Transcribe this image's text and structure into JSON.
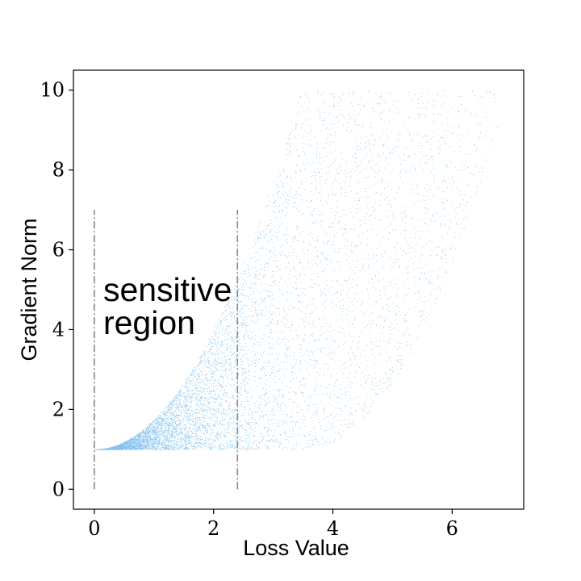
{
  "chart_data": {
    "type": "scatter",
    "title": "",
    "xlabel": "Loss Value",
    "ylabel": "Gradient Norm",
    "xlim": [
      -0.35,
      7.2
    ],
    "ylim": [
      -0.5,
      10.5
    ],
    "xticks": [
      0,
      2,
      4,
      6
    ],
    "yticks": [
      0,
      2,
      4,
      6,
      8,
      10
    ],
    "grid": false,
    "legend": "none",
    "color": "#1f8fe0",
    "point_count": 30000,
    "distribution": {
      "x_range": [
        0,
        7
      ],
      "y_floor": 1,
      "y_cap": 10,
      "upper_bound": "y = 1 + 0.75*x^2 (capped at 10)",
      "lower_bound": "y = 1 for x <= 3.5, then y = 1 + 0.75*(x-3.5)^2",
      "density": "highest near x = 0, decreasing with loss"
    },
    "vertical_lines": [
      {
        "x": 0,
        "y_range": [
          0,
          7
        ],
        "style": "dash-dot",
        "color": "#888888"
      },
      {
        "x": 2.4,
        "y_range": [
          0,
          7
        ],
        "style": "dash-dot",
        "color": "#888888"
      }
    ],
    "annotation": {
      "lines": [
        "sensitive",
        "region"
      ],
      "x": 0.15,
      "y": 5.0
    }
  }
}
